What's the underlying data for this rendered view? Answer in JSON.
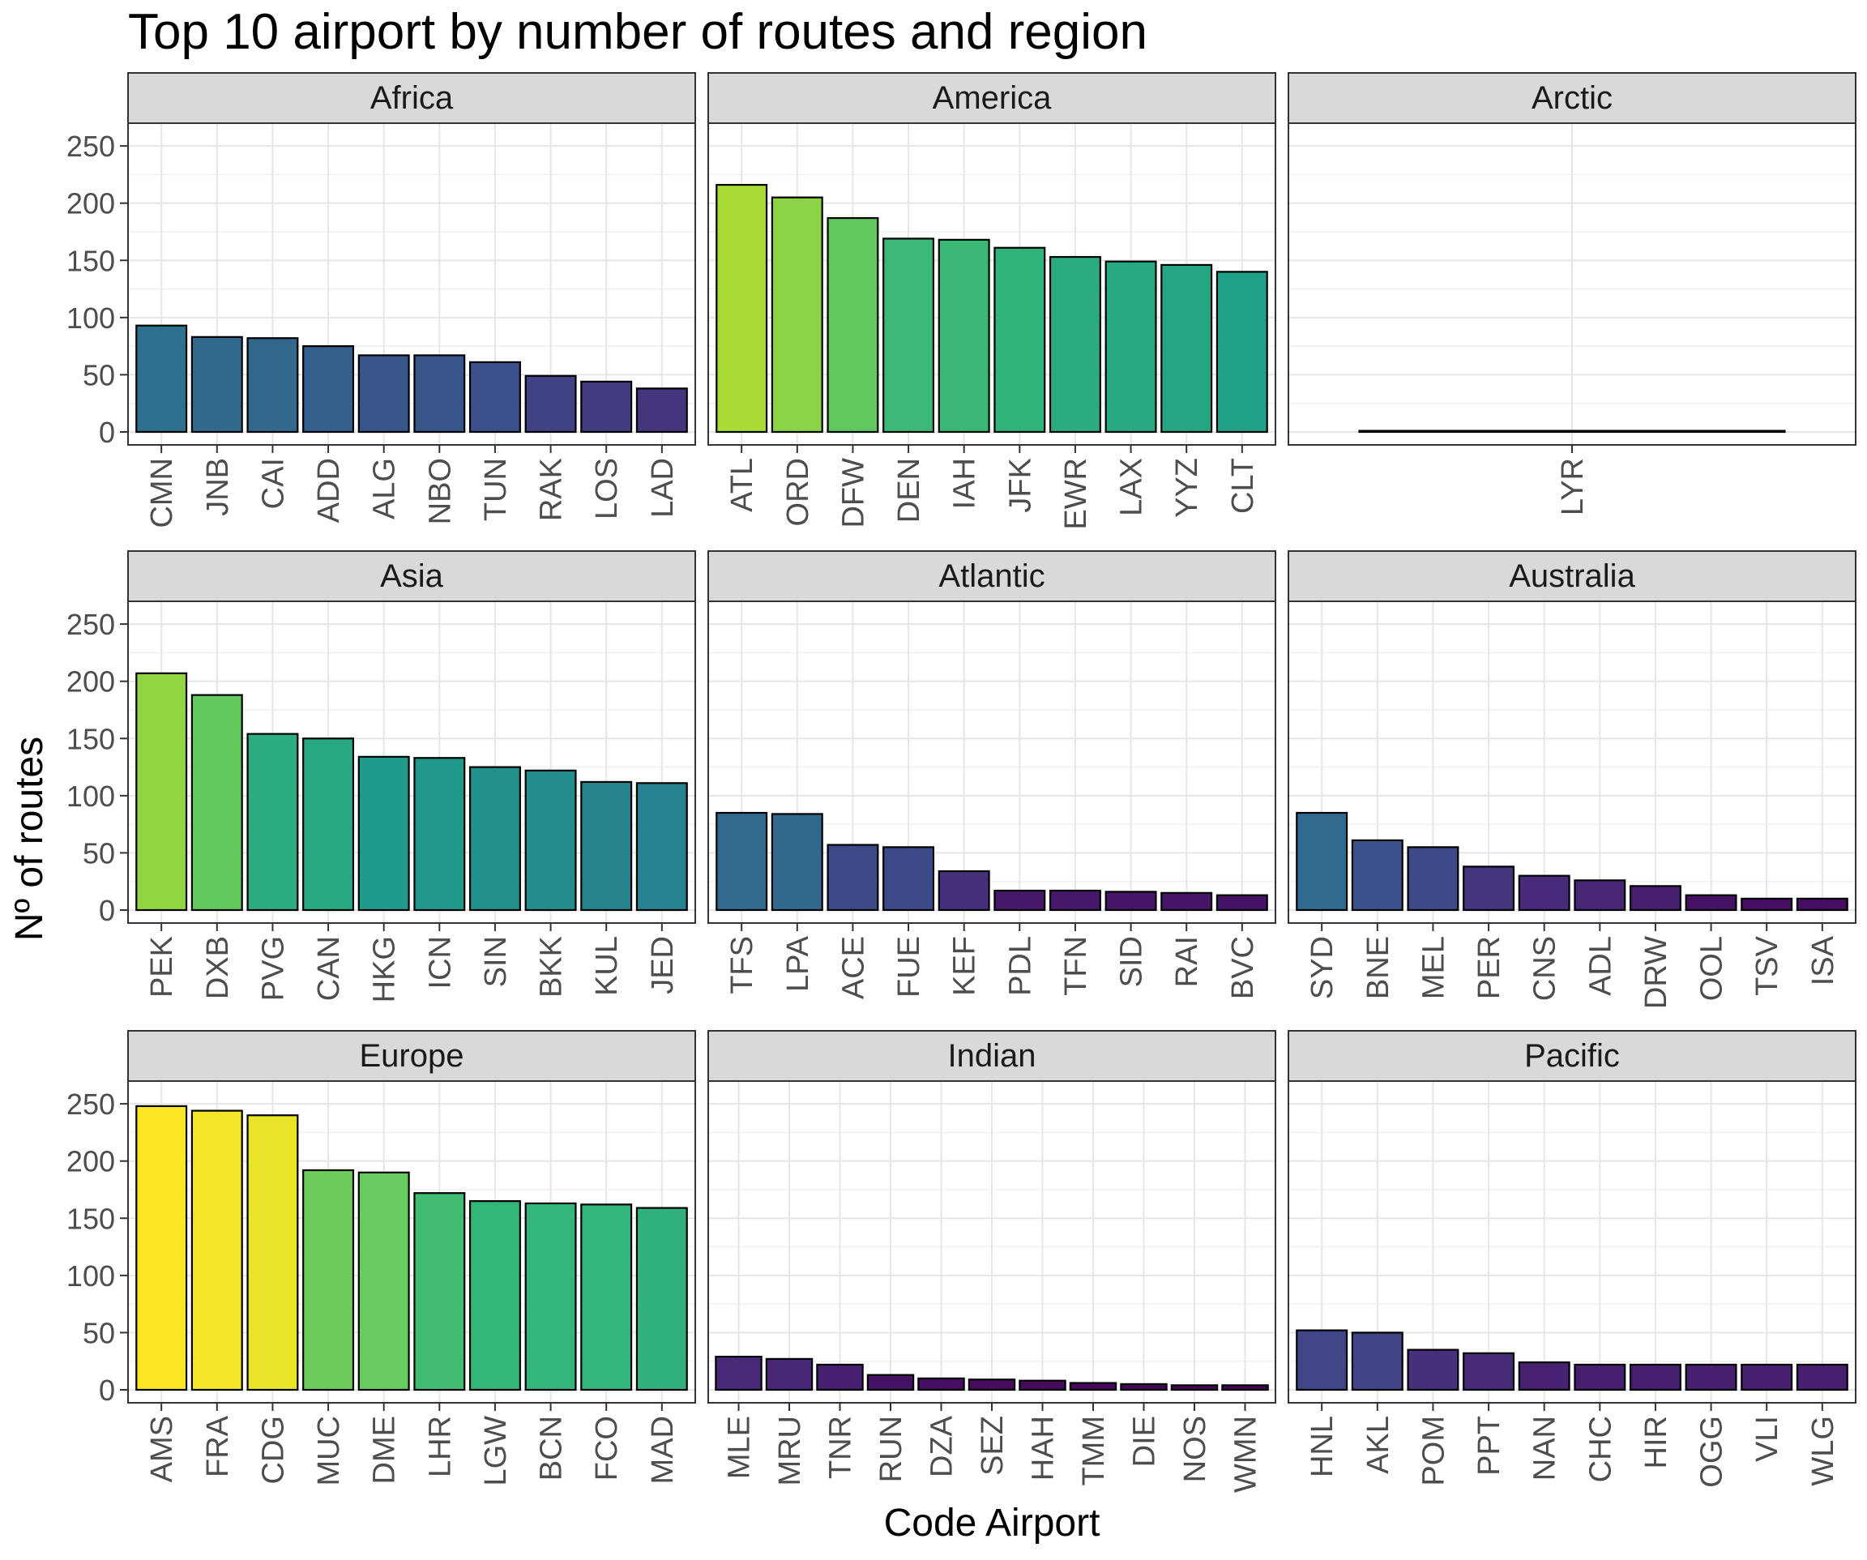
{
  "chart_data": {
    "type": "bar",
    "title": "Top 10 airport by number of routes and region",
    "xlabel": "Code Airport",
    "ylabel": "Nº of routes",
    "ylim": [
      0,
      260
    ],
    "y_ticks": [
      0,
      50,
      100,
      150,
      200,
      250
    ],
    "grid": true,
    "legend": "none",
    "facet_strip_color": "#d9d9d9",
    "color_scale": "viridis by value",
    "panels": [
      {
        "region": "Africa",
        "categories": [
          "CMN",
          "JNB",
          "CAI",
          "ADD",
          "ALG",
          "NBO",
          "TUN",
          "RAK",
          "LOS",
          "LAD"
        ],
        "values": [
          93,
          83,
          82,
          75,
          67,
          67,
          61,
          49,
          44,
          38
        ]
      },
      {
        "region": "America",
        "categories": [
          "ATL",
          "ORD",
          "DFW",
          "DEN",
          "IAH",
          "JFK",
          "EWR",
          "LAX",
          "YYZ",
          "CLT"
        ],
        "values": [
          216,
          205,
          187,
          169,
          168,
          161,
          153,
          149,
          146,
          140
        ]
      },
      {
        "region": "Arctic",
        "categories": [
          "LYR"
        ],
        "values": [
          1
        ]
      },
      {
        "region": "Asia",
        "categories": [
          "PEK",
          "DXB",
          "PVG",
          "CAN",
          "HKG",
          "ICN",
          "SIN",
          "BKK",
          "KUL",
          "JED"
        ],
        "values": [
          207,
          188,
          154,
          150,
          134,
          133,
          125,
          122,
          112,
          111
        ]
      },
      {
        "region": "Atlantic",
        "categories": [
          "TFS",
          "LPA",
          "ACE",
          "FUE",
          "KEF",
          "PDL",
          "TFN",
          "SID",
          "RAI",
          "BVC"
        ],
        "values": [
          85,
          84,
          57,
          55,
          34,
          17,
          17,
          16,
          15,
          13
        ]
      },
      {
        "region": "Australia",
        "categories": [
          "SYD",
          "BNE",
          "MEL",
          "PER",
          "CNS",
          "ADL",
          "DRW",
          "OOL",
          "TSV",
          "ISA"
        ],
        "values": [
          85,
          61,
          55,
          38,
          30,
          26,
          21,
          13,
          10,
          10
        ]
      },
      {
        "region": "Europe",
        "categories": [
          "AMS",
          "FRA",
          "CDG",
          "MUC",
          "DME",
          "LHR",
          "LGW",
          "BCN",
          "FCO",
          "MAD"
        ],
        "values": [
          248,
          244,
          240,
          192,
          190,
          172,
          165,
          163,
          162,
          159
        ]
      },
      {
        "region": "Indian",
        "categories": [
          "MLE",
          "MRU",
          "TNR",
          "RUN",
          "DZA",
          "SEZ",
          "HAH",
          "TMM",
          "DIE",
          "NOS",
          "WMN"
        ],
        "values": [
          29,
          27,
          22,
          13,
          10,
          9,
          8,
          6,
          5,
          4,
          4
        ]
      },
      {
        "region": "Pacific",
        "categories": [
          "HNL",
          "AKL",
          "POM",
          "PPT",
          "NAN",
          "CHC",
          "HIR",
          "OGG",
          "VLI",
          "WLG"
        ],
        "values": [
          52,
          50,
          35,
          32,
          24,
          22,
          22,
          22,
          22,
          22
        ]
      }
    ]
  }
}
